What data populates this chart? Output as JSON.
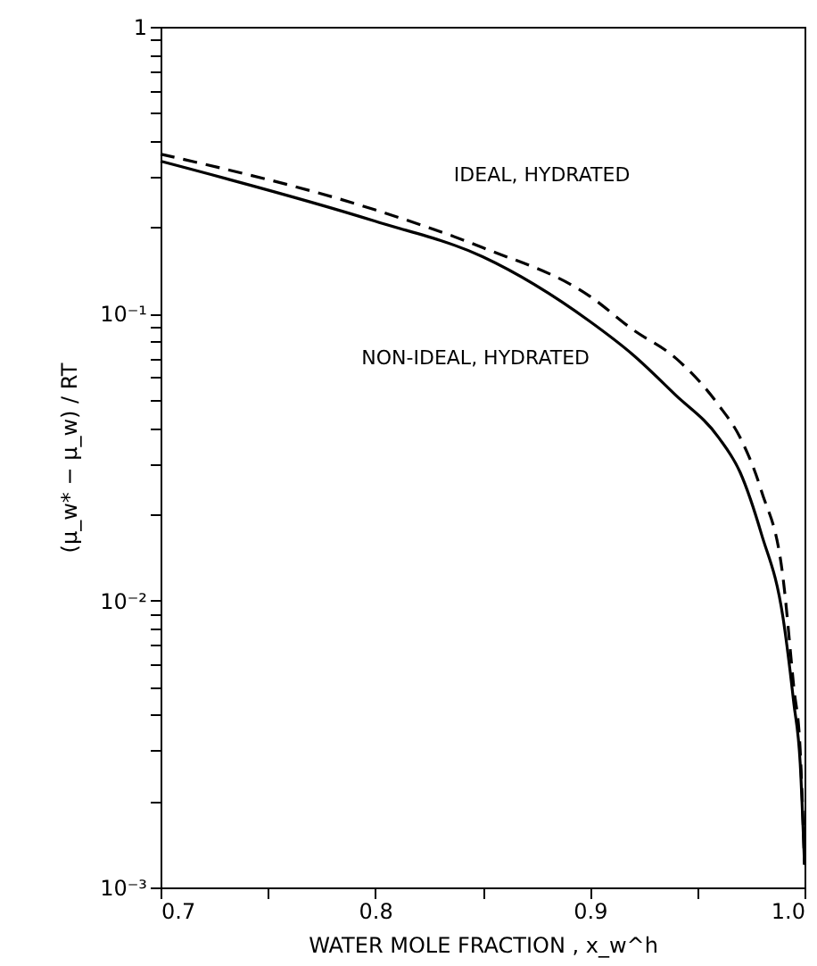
{
  "chart_data": {
    "type": "line",
    "xlabel": "WATER MOLE FRACTION , x_w^h",
    "ylabel": "(μ_w* − μ_w) / RT",
    "log": "y",
    "grid": false,
    "marker": "none",
    "xlim": [
      0.7,
      1.0
    ],
    "ylim": [
      0.001,
      1
    ],
    "xticks": [
      0.7,
      {
        "value": 0.75,
        "label": null
      },
      0.8,
      {
        "value": 0.85,
        "label": null
      },
      0.9,
      {
        "value": 0.95,
        "label": null
      },
      {
        "value": 1.0,
        "label": "1.0"
      }
    ],
    "yticks": [
      {
        "value": 0.001,
        "label": "10⁻³"
      },
      {
        "value": 0.002,
        "label": null
      },
      {
        "value": 0.003,
        "label": null
      },
      {
        "value": 0.004,
        "label": null
      },
      {
        "value": 0.005,
        "label": null
      },
      {
        "value": 0.006,
        "label": null
      },
      {
        "value": 0.007,
        "label": null
      },
      {
        "value": 0.008,
        "label": null
      },
      {
        "value": 0.009,
        "label": null
      },
      {
        "value": 0.01,
        "label": "10⁻²"
      },
      {
        "value": 0.02,
        "label": null
      },
      {
        "value": 0.03,
        "label": null
      },
      {
        "value": 0.04,
        "label": null
      },
      {
        "value": 0.05,
        "label": null
      },
      {
        "value": 0.06,
        "label": null
      },
      {
        "value": 0.07,
        "label": null
      },
      {
        "value": 0.08,
        "label": null
      },
      {
        "value": 0.09,
        "label": null
      },
      {
        "value": 0.1,
        "label": "10⁻¹"
      },
      {
        "value": 0.2,
        "label": null
      },
      {
        "value": 0.3,
        "label": null
      },
      {
        "value": 0.4,
        "label": null
      },
      {
        "value": 0.5,
        "label": null
      },
      {
        "value": 0.6,
        "label": null
      },
      {
        "value": 0.7,
        "label": null
      },
      {
        "value": 0.8,
        "label": null
      },
      {
        "value": 0.9,
        "label": null
      },
      1
    ],
    "x": [
      0.7,
      0.8,
      0.85,
      0.9,
      0.92,
      0.94,
      0.96,
      0.97,
      0.98,
      0.99,
      0.995,
      0.998,
      1.0
    ],
    "series": [
      {
        "color": "#000000",
        "line_style": "dashed",
        "values": [
          0.36,
          0.23,
          0.17,
          0.115,
          0.088,
          0.07,
          0.048,
          0.037,
          0.024,
          0.012,
          0.005,
          0.003,
          0.0012
        ]
      },
      {
        "color": "#000000",
        "line_style": "solid",
        "values": [
          0.34,
          0.21,
          0.158,
          0.094,
          0.072,
          0.052,
          0.037,
          0.028,
          0.017,
          0.0087,
          0.0044,
          0.0027,
          0.0012
        ]
      }
    ],
    "annotations": [
      {
        "text": "IDEAL, HYDRATED",
        "x": 0.82,
        "y": 0.22
      },
      {
        "text": "NON-IDEAL, HYDRATED",
        "x": 0.88,
        "y": 0.11
      }
    ]
  }
}
